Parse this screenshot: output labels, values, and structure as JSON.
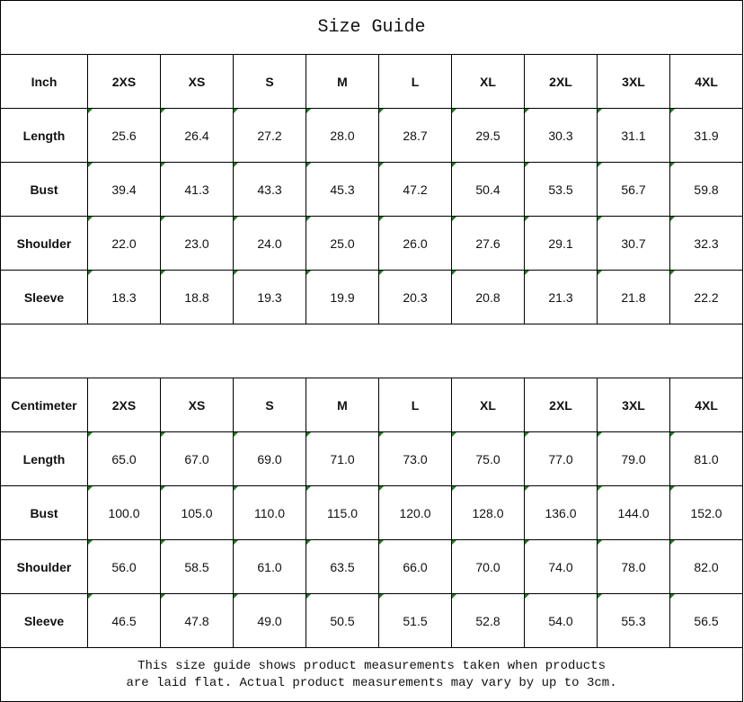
{
  "title": "Size Guide",
  "sizes": [
    "2XS",
    "XS",
    "S",
    "M",
    "L",
    "XL",
    "2XL",
    "3XL",
    "4XL"
  ],
  "tables": [
    {
      "unit": "Inch",
      "rows": [
        {
          "label": "Length",
          "values": [
            "25.6",
            "26.4",
            "27.2",
            "28.0",
            "28.7",
            "29.5",
            "30.3",
            "31.1",
            "31.9"
          ]
        },
        {
          "label": "Bust",
          "values": [
            "39.4",
            "41.3",
            "43.3",
            "45.3",
            "47.2",
            "50.4",
            "53.5",
            "56.7",
            "59.8"
          ]
        },
        {
          "label": "Shoulder",
          "values": [
            "22.0",
            "23.0",
            "24.0",
            "25.0",
            "26.0",
            "27.6",
            "29.1",
            "30.7",
            "32.3"
          ]
        },
        {
          "label": "Sleeve",
          "values": [
            "18.3",
            "18.8",
            "19.3",
            "19.9",
            "20.3",
            "20.8",
            "21.3",
            "21.8",
            "22.2"
          ]
        }
      ]
    },
    {
      "unit": "Centimeter",
      "rows": [
        {
          "label": "Length",
          "values": [
            "65.0",
            "67.0",
            "69.0",
            "71.0",
            "73.0",
            "75.0",
            "77.0",
            "79.0",
            "81.0"
          ]
        },
        {
          "label": "Bust",
          "values": [
            "100.0",
            "105.0",
            "110.0",
            "115.0",
            "120.0",
            "128.0",
            "136.0",
            "144.0",
            "152.0"
          ]
        },
        {
          "label": "Shoulder",
          "values": [
            "56.0",
            "58.5",
            "61.0",
            "63.5",
            "66.0",
            "70.0",
            "74.0",
            "78.0",
            "82.0"
          ]
        },
        {
          "label": "Sleeve",
          "values": [
            "46.5",
            "47.8",
            "49.0",
            "50.5",
            "51.5",
            "52.8",
            "54.0",
            "55.3",
            "56.5"
          ]
        }
      ]
    }
  ],
  "footer": {
    "line1": "This size guide shows product measurements taken when products",
    "line2": "are laid flat. Actual product measurements may vary by up to 3cm."
  },
  "colors": {
    "text_marker": "#1a7f1a"
  }
}
